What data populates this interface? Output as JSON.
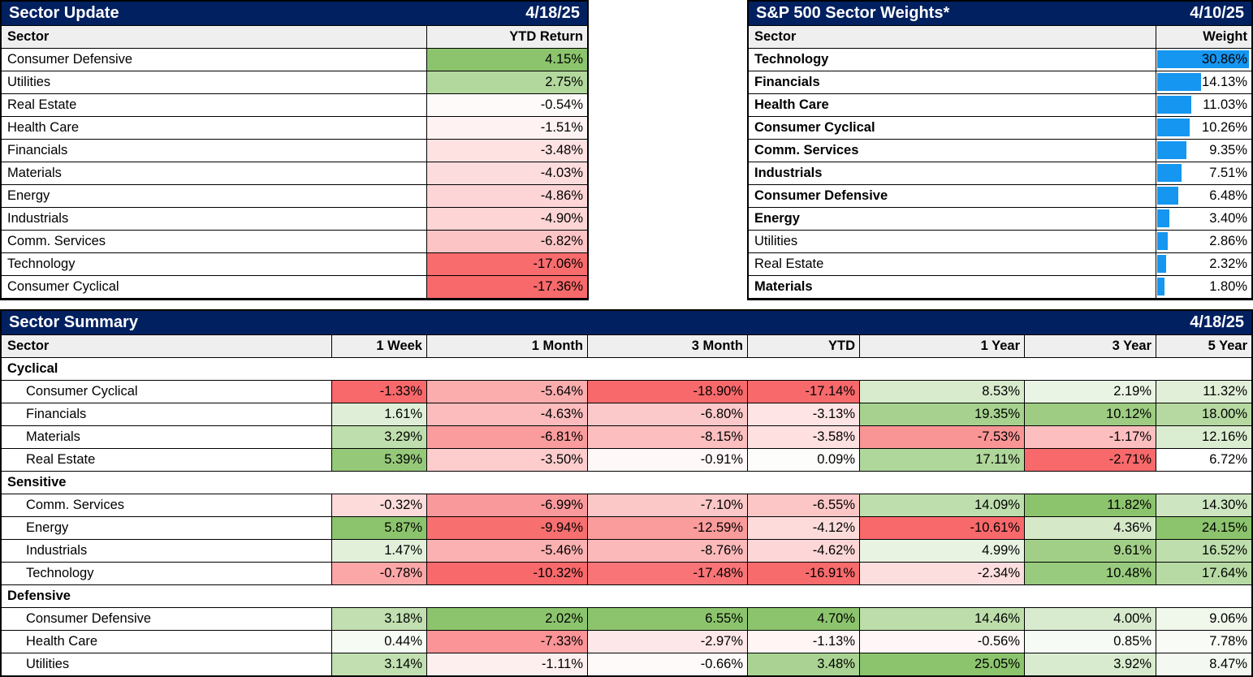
{
  "colors": {
    "navy": "#002060",
    "header_bg": "#EFEFEF",
    "bar_blue": "#1596F0",
    "scale_red": "#F8696B",
    "scale_green": "#8CC46D",
    "scale_mid": "#FFFFFF"
  },
  "sector_update": {
    "title": "Sector Update",
    "date": "4/18/25",
    "col_sector": "Sector",
    "col_value": "YTD Return",
    "rows": [
      {
        "sector": "Consumer Defensive",
        "value": 4.15
      },
      {
        "sector": "Utilities",
        "value": 2.75
      },
      {
        "sector": "Real Estate",
        "value": -0.54
      },
      {
        "sector": "Health Care",
        "value": -1.51
      },
      {
        "sector": "Financials",
        "value": -3.48
      },
      {
        "sector": "Materials",
        "value": -4.03
      },
      {
        "sector": "Energy",
        "value": -4.86
      },
      {
        "sector": "Industrials",
        "value": -4.9
      },
      {
        "sector": "Comm. Services",
        "value": -6.82
      },
      {
        "sector": "Technology",
        "value": -17.06
      },
      {
        "sector": "Consumer Cyclical",
        "value": -17.36
      }
    ]
  },
  "sector_weights": {
    "title": "S&P 500 Sector Weights*",
    "date": "4/10/25",
    "col_sector": "Sector",
    "col_value": "Weight",
    "rows": [
      {
        "sector": "Technology",
        "value": 30.86,
        "bold": true
      },
      {
        "sector": "Financials",
        "value": 14.13,
        "bold": true
      },
      {
        "sector": "Health Care",
        "value": 11.03,
        "bold": true
      },
      {
        "sector": "Consumer Cyclical",
        "value": 10.26,
        "bold": true
      },
      {
        "sector": "Comm. Services",
        "value": 9.35,
        "bold": true
      },
      {
        "sector": "Industrials",
        "value": 7.51,
        "bold": true
      },
      {
        "sector": "Consumer Defensive",
        "value": 6.48,
        "bold": true
      },
      {
        "sector": "Energy",
        "value": 3.4,
        "bold": true
      },
      {
        "sector": "Utilities",
        "value": 2.86,
        "bold": false
      },
      {
        "sector": "Real Estate",
        "value": 2.32,
        "bold": false
      },
      {
        "sector": "Materials",
        "value": 1.8,
        "bold": true
      }
    ]
  },
  "sector_summary": {
    "title": "Sector Summary",
    "date": "4/18/25",
    "col_sector": "Sector",
    "period_headers": [
      "1 Week",
      "1 Month",
      "3 Month",
      "YTD",
      "1 Year",
      "3 Year",
      "5 Year"
    ],
    "groups": [
      {
        "label": "Cyclical",
        "rows": [
          {
            "sector": "Consumer Cyclical",
            "values": [
              -1.33,
              -5.64,
              -18.9,
              -17.14,
              8.53,
              2.19,
              11.32
            ]
          },
          {
            "sector": "Financials",
            "values": [
              1.61,
              -4.63,
              -6.8,
              -3.13,
              19.35,
              10.12,
              18.0
            ]
          },
          {
            "sector": "Materials",
            "values": [
              3.29,
              -6.81,
              -8.15,
              -3.58,
              -7.53,
              -1.17,
              12.16
            ]
          },
          {
            "sector": "Real Estate",
            "values": [
              5.39,
              -3.5,
              -0.91,
              0.09,
              17.11,
              -2.71,
              6.72
            ]
          }
        ]
      },
      {
        "label": "Sensitive",
        "rows": [
          {
            "sector": "Comm. Services",
            "values": [
              -0.32,
              -6.99,
              -7.1,
              -6.55,
              14.09,
              11.82,
              14.3
            ]
          },
          {
            "sector": "Energy",
            "values": [
              5.87,
              -9.94,
              -12.59,
              -4.12,
              -10.61,
              4.36,
              24.15
            ]
          },
          {
            "sector": "Industrials",
            "values": [
              1.47,
              -5.46,
              -8.76,
              -4.62,
              4.99,
              9.61,
              16.52
            ]
          },
          {
            "sector": "Technology",
            "values": [
              -0.78,
              -10.32,
              -17.48,
              -16.91,
              -2.34,
              10.48,
              17.64
            ]
          }
        ]
      },
      {
        "label": "Defensive",
        "rows": [
          {
            "sector": "Consumer Defensive",
            "values": [
              3.18,
              2.02,
              6.55,
              4.7,
              14.46,
              4.0,
              9.06
            ]
          },
          {
            "sector": "Health Care",
            "values": [
              0.44,
              -7.33,
              -2.97,
              -1.13,
              -0.56,
              0.85,
              7.78
            ]
          },
          {
            "sector": "Utilities",
            "values": [
              3.14,
              -1.11,
              -0.66,
              3.48,
              25.05,
              3.92,
              8.47
            ]
          }
        ]
      }
    ]
  }
}
